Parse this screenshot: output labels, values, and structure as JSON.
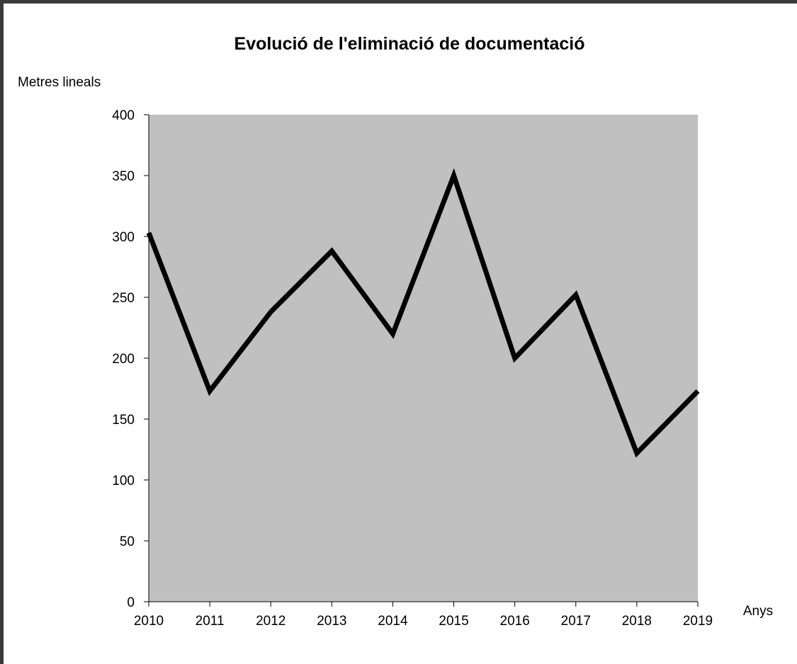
{
  "chart_data": {
    "type": "line",
    "title": "Evolució de l'eliminació de documentació",
    "xlabel": "Anys",
    "ylabel": "Metres lineals",
    "categories": [
      "2010",
      "2011",
      "2012",
      "2013",
      "2014",
      "2015",
      "2016",
      "2017",
      "2018",
      "2019"
    ],
    "series": [
      {
        "values": [
          303,
          173,
          238,
          288,
          220,
          350,
          200,
          252,
          122,
          173
        ]
      }
    ],
    "ylim": [
      0,
      400
    ],
    "yticks": [
      "0",
      "50",
      "100",
      "150",
      "200",
      "250",
      "300",
      "350",
      "400"
    ],
    "grid": false,
    "legend": "none",
    "plot_background": "#c0c0c0",
    "line_color": "#000000"
  }
}
